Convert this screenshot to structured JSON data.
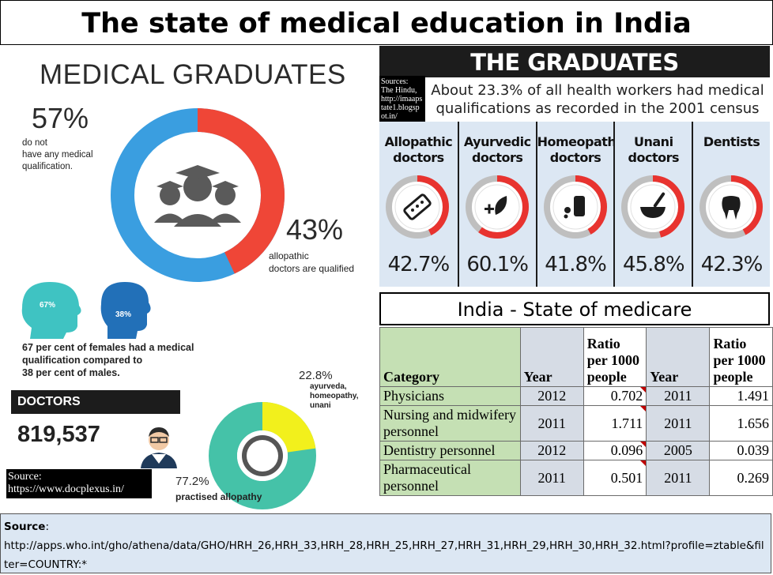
{
  "title": "The state of medical education in India",
  "left_infographic": {
    "heading": "MEDICAL GRADUATES",
    "stat_unqualified": {
      "value": "57%",
      "line1": "do not",
      "line2": "have any medical",
      "line3": "qualification."
    },
    "stat_qualified": {
      "value": "43%",
      "line1": "allopathic",
      "line2": "doctors are qualified"
    },
    "female_pct": "67%",
    "male_pct": "38%",
    "gender_text": {
      "line1": "67 per cent of females had a medical",
      "line2": "qualification compared to",
      "line3": "38 per cent of males."
    },
    "doctors_label": "DOCTORS",
    "doctors_count": "819,537",
    "ayurveda_pct": "22.8%",
    "ayurveda_label": {
      "line1": "ayurveda,",
      "line2": "homeopathy,",
      "line3": "unani"
    },
    "allopathy_pct": "77.2%",
    "allopathy_label": "practised allopathy",
    "source_label": "Source:",
    "source_url": "https://www.docplexus.in/",
    "colors": {
      "blue": "#3a9ee0",
      "red": "#ef4637",
      "teal": "#45c2a8",
      "yellow": "#f2f01c",
      "face_teal": "#3fc3c2",
      "face_blue": "#2270b8"
    }
  },
  "graduates": {
    "header": "THE GRADUATES",
    "source": {
      "line1": "Sources:",
      "line2": "The Hindu,",
      "line3": "http://imaaps",
      "line4": "tate1.blogsp",
      "line5": "ot.in/"
    },
    "caption_line1": "About 23.3% of all health workers had medical",
    "caption_line2": "qualifications as recorded in the 2001 census",
    "columns": [
      {
        "label1": "Allopathic",
        "label2": "doctors",
        "pct": "42.7%",
        "value": 42.7,
        "icon": "pills-icon"
      },
      {
        "label1": "Ayurvedic",
        "label2": "doctors",
        "pct": "60.1%",
        "value": 60.1,
        "icon": "leaf-plus-icon"
      },
      {
        "label1": "Homeopathy",
        "label2": "doctors",
        "pct": "41.8%",
        "value": 41.8,
        "icon": "bottle-icon"
      },
      {
        "label1": "Unani",
        "label2": "doctors",
        "pct": "45.8%",
        "value": 45.8,
        "icon": "mortar-pestle-icon"
      },
      {
        "label1": "Dentists",
        "label2": "",
        "pct": "42.3%",
        "value": 42.3,
        "icon": "tooth-icon"
      }
    ],
    "colors": {
      "ring_red": "#e8332f",
      "ring_gray": "#bfbfbf"
    }
  },
  "table": {
    "title": "India - State of medicare",
    "headers": {
      "category": "Category",
      "year1": "Year",
      "ratio1": "Ratio per 1000 people",
      "year2": "Year",
      "ratio2": "Ratio per 1000 people"
    },
    "rows": [
      {
        "category": "Physicians",
        "year1": "2012",
        "ratio1": "0.702",
        "year2": "2011",
        "ratio2": "1.491"
      },
      {
        "category": "Nursing and midwifery personnel",
        "year1": "2011",
        "ratio1": "1.711",
        "year2": "2011",
        "ratio2": "1.656"
      },
      {
        "category": "Dentistry personnel",
        "year1": "2012",
        "ratio1": "0.096",
        "year2": "2005",
        "ratio2": "0.039"
      },
      {
        "category": "Pharmaceutical personnel",
        "year1": "2011",
        "ratio1": "0.501",
        "year2": "2011",
        "ratio2": "0.269"
      }
    ]
  },
  "source_footer": {
    "label": "Source",
    "url": "http://apps.who.int/gho/athena/data/GHO/HRH_26,HRH_33,HRH_28,HRH_25,HRH_27,HRH_31,HRH_29,HRH_30,HRH_32.html?profile=ztable&filter=COUNTRY:*"
  }
}
